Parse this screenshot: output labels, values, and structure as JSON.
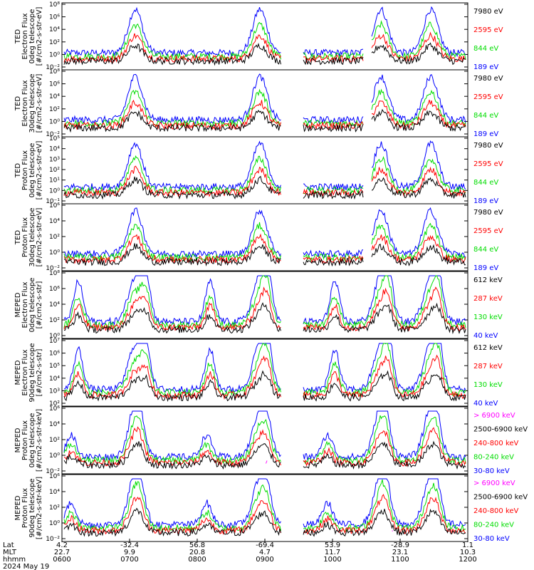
{
  "colors": {
    "black": "#000000",
    "red": "#ff0000",
    "green": "#00dd00",
    "blue": "#0000ff",
    "magenta": "#ff00ff"
  },
  "chart_data": [
    {
      "type": "line",
      "ylabel": [
        "TED",
        "Electron Flux",
        "0deg telescope",
        "[#/cm2-s-str-eV]"
      ],
      "yticks": [
        "10⁸",
        "10⁶",
        "10⁴",
        "10²",
        "10⁰",
        "10⁻²"
      ],
      "ylim_exp": [
        -2,
        8
      ],
      "series": [
        {
          "name": "7980 eV",
          "color": "black"
        },
        {
          "name": "2595 eV",
          "color": "red"
        },
        {
          "name": "844 eV",
          "color": "green"
        },
        {
          "name": "189 eV",
          "color": "blue"
        }
      ]
    },
    {
      "type": "line",
      "ylabel": [
        "TED",
        "Electron Flux",
        "30deg telescope",
        "[#/cm2-s-str-eV]"
      ],
      "yticks": [
        "10⁸",
        "10⁶",
        "10⁴",
        "10²",
        "10⁰",
        "10⁻²"
      ],
      "ylim_exp": [
        -2,
        8
      ],
      "series": [
        {
          "name": "7980 eV",
          "color": "black"
        },
        {
          "name": "2595 eV",
          "color": "red"
        },
        {
          "name": "844 eV",
          "color": "green"
        },
        {
          "name": "189 eV",
          "color": "blue"
        }
      ]
    },
    {
      "type": "line",
      "ylabel": [
        "TED",
        "Proton Flux",
        "0deg telescope",
        "[#/cm2-s-str-eV]"
      ],
      "yticks": [
        "10⁵",
        "10⁴",
        "10³",
        "10²",
        "10¹",
        "10⁰",
        "10⁻¹"
      ],
      "ylim_exp": [
        -1,
        5
      ],
      "series": [
        {
          "name": "7980 eV",
          "color": "black"
        },
        {
          "name": "2595 eV",
          "color": "red"
        },
        {
          "name": "844 eV",
          "color": "green"
        },
        {
          "name": "189 eV",
          "color": "blue"
        }
      ]
    },
    {
      "type": "line",
      "ylabel": [
        "TED",
        "Proton Flux",
        "30deg telescope",
        "[#/cm2-s-str-eV]"
      ],
      "yticks": [
        "10⁶",
        "10⁴",
        "10²",
        "10⁰",
        "10⁻²"
      ],
      "ylim_exp": [
        -2,
        6
      ],
      "series": [
        {
          "name": "7980 eV",
          "color": "black"
        },
        {
          "name": "2595 eV",
          "color": "red"
        },
        {
          "name": "844 eV",
          "color": "green"
        },
        {
          "name": "189 eV",
          "color": "blue"
        }
      ]
    },
    {
      "type": "line",
      "ylabel": [
        "MEPED",
        "Electron Flux",
        "0deg telescope",
        "[#/cm2-s-str]"
      ],
      "yticks": [
        "10⁸",
        "10⁶",
        "10⁴",
        "10²",
        "10⁰"
      ],
      "ylim_exp": [
        0,
        8
      ],
      "series": [
        {
          "name": "612 keV",
          "color": "black"
        },
        {
          "name": "287 keV",
          "color": "red"
        },
        {
          "name": "130 keV",
          "color": "green"
        },
        {
          "name": "40 keV",
          "color": "blue"
        }
      ]
    },
    {
      "type": "line",
      "ylabel": [
        "MEPED",
        "Electron Flux",
        "90deg telescope",
        "[#/cm2-s-str]"
      ],
      "yticks": [
        "10⁷",
        "10⁶",
        "10⁵",
        "10⁴",
        "10³",
        "10²"
      ],
      "ylim_exp": [
        2,
        7
      ],
      "series": [
        {
          "name": "612 keV",
          "color": "black"
        },
        {
          "name": "287 keV",
          "color": "red"
        },
        {
          "name": "130 keV",
          "color": "green"
        },
        {
          "name": "40 keV",
          "color": "blue"
        }
      ]
    },
    {
      "type": "line",
      "ylabel": [
        "MEPED",
        "Proton Flux",
        "0deg telescope",
        "[#/cm2-s-str-keV]"
      ],
      "yticks": [
        "10⁶",
        "10⁴",
        "10²",
        "10⁰",
        "10⁻²"
      ],
      "ylim_exp": [
        -2,
        6
      ],
      "series": [
        {
          "name": "> 6900 keV",
          "color": "magenta"
        },
        {
          "name": "2500-6900 keV",
          "color": "black"
        },
        {
          "name": "240-800 keV",
          "color": "red"
        },
        {
          "name": "80-240 keV",
          "color": "green"
        },
        {
          "name": "30-80 keV",
          "color": "blue"
        }
      ]
    },
    {
      "type": "line",
      "ylabel": [
        "MEPED",
        "Proton Flux",
        "90deg telescope",
        "[#/cm2-s-str-keV]"
      ],
      "yticks": [
        "10⁶",
        "10⁴",
        "10²",
        "10⁰",
        "10⁻²"
      ],
      "ylim_exp": [
        -2,
        6
      ],
      "series": [
        {
          "name": "> 6900 keV",
          "color": "magenta"
        },
        {
          "name": "2500-6900 keV",
          "color": "black"
        },
        {
          "name": "240-800 keV",
          "color": "red"
        },
        {
          "name": "80-240 keV",
          "color": "green"
        },
        {
          "name": "30-80 keV",
          "color": "blue"
        }
      ]
    }
  ],
  "x_axis": {
    "row_labels": [
      "Lat",
      "MLT",
      "hhmm",
      "2024 May 19"
    ],
    "columns": [
      {
        "lat": "4.2",
        "mlt": "22.7",
        "hhmm": "0600"
      },
      {
        "lat": "-32.4",
        "mlt": "9.9",
        "hhmm": "0700"
      },
      {
        "lat": "56.8",
        "mlt": "20.8",
        "hhmm": "0800"
      },
      {
        "lat": "-69.4",
        "mlt": "4.7",
        "hhmm": "0900"
      },
      {
        "lat": "53.9",
        "mlt": "11.7",
        "hhmm": "1000"
      },
      {
        "lat": "-28.9",
        "mlt": "23.1",
        "hhmm": "1100"
      },
      {
        "lat": "1.1",
        "mlt": "10.3",
        "hhmm": "1200"
      }
    ]
  }
}
